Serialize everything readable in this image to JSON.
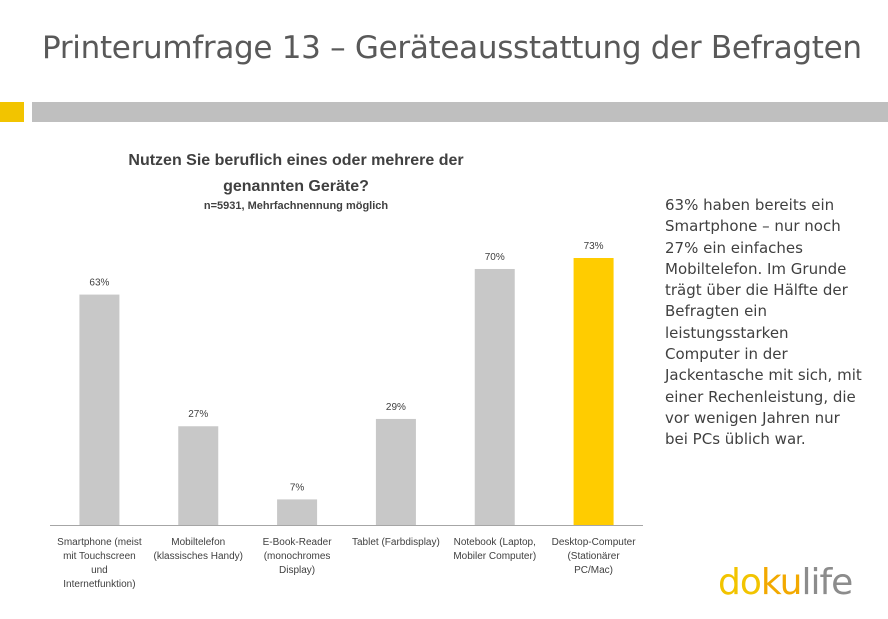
{
  "slide": {
    "title": "Printerumfrage 13 – Geräteausstattung der Befragten",
    "accent_color": "#f2c400",
    "side_text": "63% haben bereits ein Smartphone – nur noch 27% ein einfaches Mobiltelefon.  Im Grunde trägt über die Hälfte der Befragten ein leistungsstarken Computer in der Jackentasche mit sich, mit einer Rechenleistung, die vor wenigen Jahren nur bei PCs üblich war."
  },
  "logo": {
    "part1": "do",
    "part2": "ku",
    "part3": "life",
    "color1": "#f2c400",
    "color2": "#f2a900",
    "color3": "#8c8c8c"
  },
  "chart_data": {
    "type": "bar",
    "title": "Nutzen Sie beruflich eines oder mehrere der genannten Geräte?",
    "subtitle": "n=5931, Mehrfachnennung möglich",
    "categories": [
      [
        "Smartphone (meist",
        "mit Touchscreen",
        "und",
        "Internetfunktion)"
      ],
      [
        "Mobiltelefon",
        "(klassisches Handy)"
      ],
      [
        "E-Book-Reader",
        "(monochromes",
        "Display)"
      ],
      [
        "Tablet (Farbdisplay)"
      ],
      [
        "Notebook (Laptop,",
        "Mobiler Computer)"
      ],
      [
        "Desktop-Computer",
        "(Stationärer",
        "PC/Mac)"
      ]
    ],
    "values": [
      63,
      27,
      7,
      29,
      70,
      73
    ],
    "value_labels": [
      "63%",
      "27%",
      "7%",
      "29%",
      "70%",
      "73%"
    ],
    "bar_colors": [
      "#c8c8c8",
      "#c8c8c8",
      "#c8c8c8",
      "#c8c8c8",
      "#c8c8c8",
      "#ffcc00"
    ],
    "highlight_index": 5,
    "ylim": [
      0,
      100
    ],
    "grid": false,
    "legend": "none"
  }
}
